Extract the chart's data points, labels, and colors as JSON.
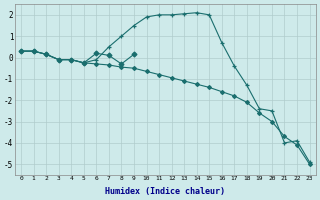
{
  "xlabel": "Humidex (Indice chaleur)",
  "ylabel": "",
  "background_color": "#ceeaea",
  "grid_color": "#b0cccc",
  "line_color": "#1a6e6e",
  "xlim": [
    -0.5,
    23.5
  ],
  "ylim": [
    -5.5,
    2.5
  ],
  "yticks": [
    2,
    1,
    0,
    -1,
    -2,
    -3,
    -4,
    -5
  ],
  "xticks": [
    0,
    1,
    2,
    3,
    4,
    5,
    6,
    7,
    8,
    9,
    10,
    11,
    12,
    13,
    14,
    15,
    16,
    17,
    18,
    19,
    20,
    21,
    22,
    23
  ],
  "series": [
    {
      "x": [
        0,
        1,
        2,
        3,
        4,
        5,
        6,
        7,
        8,
        9,
        10,
        11,
        12,
        13,
        14,
        15,
        16,
        17,
        18,
        19,
        20,
        21,
        22,
        23
      ],
      "y": [
        0.3,
        0.3,
        0.15,
        -0.1,
        -0.1,
        -0.25,
        -0.3,
        -0.35,
        -0.45,
        -0.5,
        -0.65,
        -0.8,
        -0.95,
        -1.1,
        -1.25,
        -1.4,
        -1.6,
        -1.8,
        -2.1,
        -2.6,
        -3.0,
        -3.7,
        -4.1,
        -5.0
      ],
      "marker": "D",
      "markersize": 2.0
    },
    {
      "x": [
        0,
        1,
        2,
        3,
        4,
        5,
        6,
        7,
        8,
        9,
        10,
        11,
        12,
        13,
        14,
        15,
        16,
        17,
        18,
        19,
        20,
        21,
        22,
        23
      ],
      "y": [
        0.3,
        0.3,
        0.15,
        -0.1,
        -0.1,
        -0.25,
        -0.1,
        0.5,
        1.0,
        1.5,
        1.9,
        2.0,
        2.0,
        2.05,
        2.1,
        2.0,
        0.7,
        -0.4,
        -1.3,
        -2.4,
        -2.5,
        -4.0,
        -3.9,
        -4.9
      ],
      "marker": "+",
      "markersize": 3.5
    },
    {
      "x": [
        0,
        1,
        2,
        3,
        4,
        5,
        6,
        7,
        8,
        9
      ],
      "y": [
        0.3,
        0.3,
        0.15,
        -0.1,
        -0.1,
        -0.25,
        0.2,
        0.1,
        -0.3,
        0.15
      ],
      "marker": "D",
      "markersize": 2.5
    }
  ]
}
